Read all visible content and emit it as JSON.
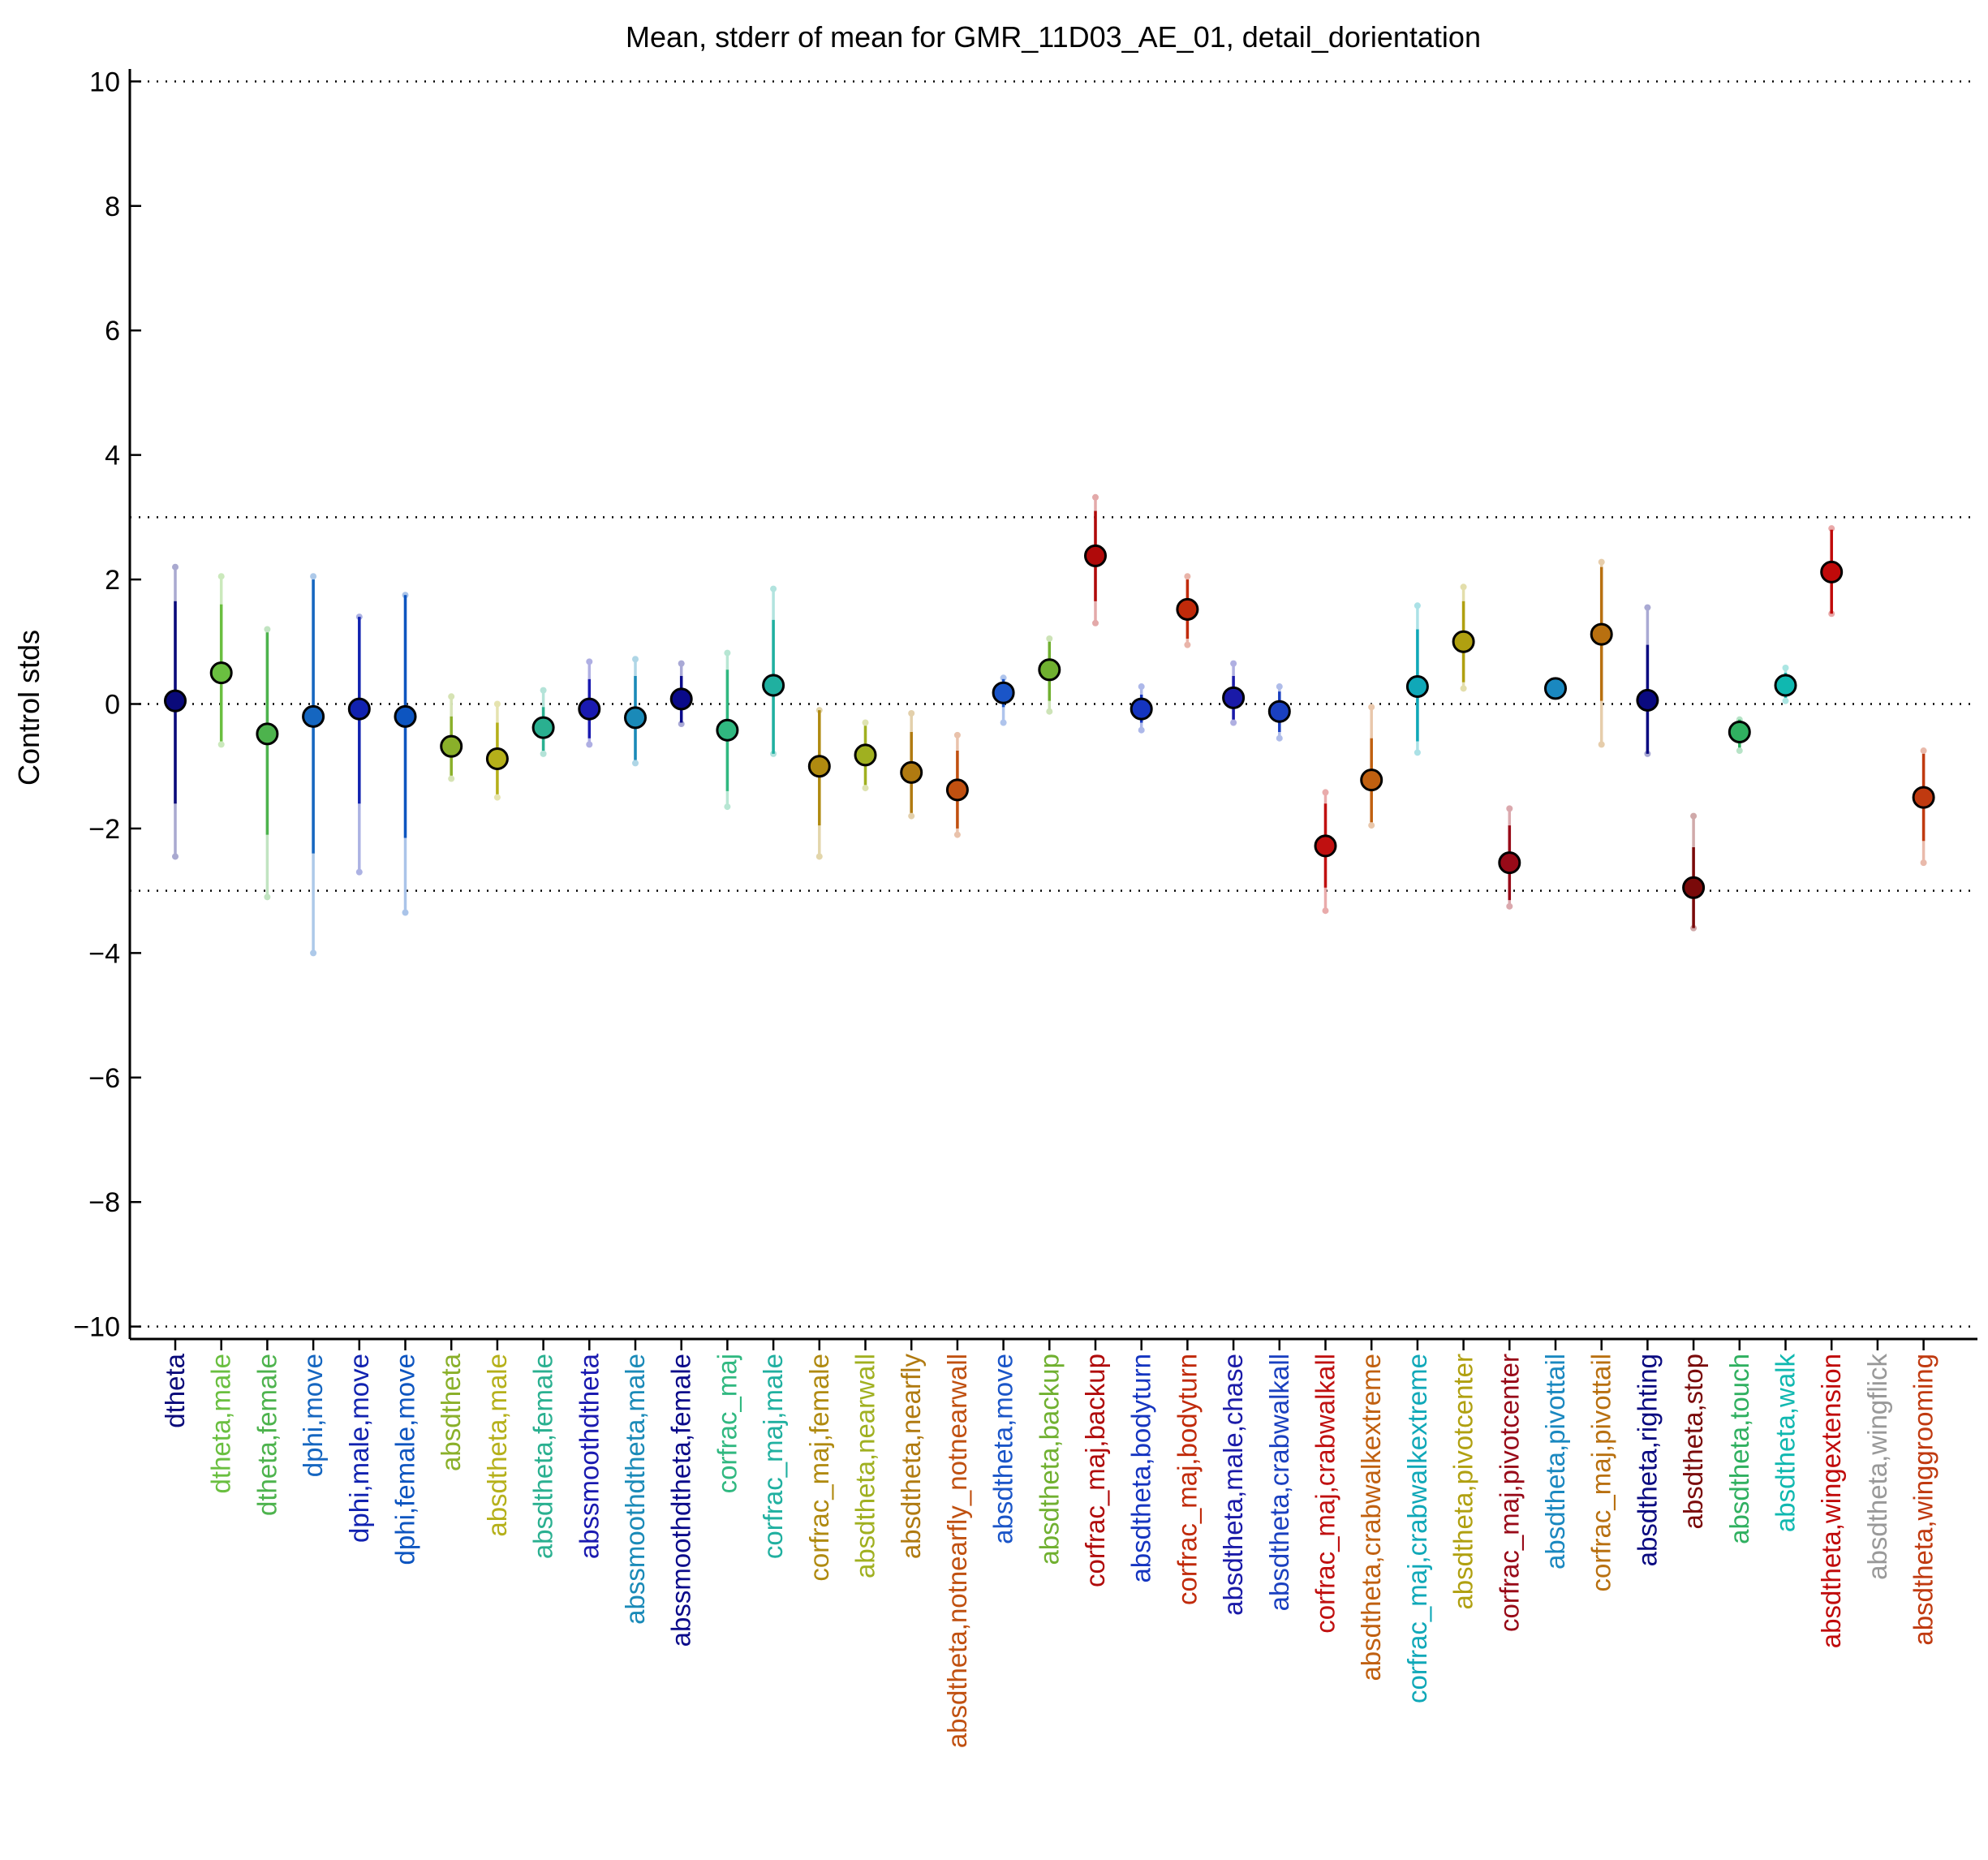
{
  "chart_data": {
    "type": "scatter",
    "title": "Mean, stderr of mean for GMR_11D03_AE_01, detail_dorientation",
    "xlabel": "",
    "ylabel": "Control stds",
    "ylim": [
      -10.2,
      10.2
    ],
    "yticks": [
      10,
      8,
      6,
      4,
      2,
      0,
      -2,
      -4,
      -6,
      -8,
      -10
    ],
    "ytick_labels": [
      "10",
      "8",
      "6",
      "4",
      "2",
      "0",
      "−2",
      "−4",
      "−6",
      "−8",
      "−10"
    ],
    "reference_lines": [
      10,
      3,
      0,
      -3,
      -10
    ],
    "grid": false,
    "legend": "none",
    "points": [
      {
        "label": "dtheta",
        "mean": 0.05,
        "sem_low": -1.6,
        "sem_high": 1.65,
        "ext_low": -2.45,
        "ext_high": 2.2,
        "color": "#0a0a7a"
      },
      {
        "label": "dtheta,male",
        "mean": 0.5,
        "sem_low": -0.6,
        "sem_high": 1.6,
        "ext_low": -0.65,
        "ext_high": 2.05,
        "color": "#6abf40"
      },
      {
        "label": "dtheta,female",
        "mean": -0.48,
        "sem_low": -2.1,
        "sem_high": 1.15,
        "ext_low": -3.1,
        "ext_high": 1.2,
        "color": "#4db34d"
      },
      {
        "label": "dphi,move",
        "mean": -0.2,
        "sem_low": -2.4,
        "sem_high": 2.0,
        "ext_low": -4.0,
        "ext_high": 2.05,
        "color": "#1566c0"
      },
      {
        "label": "dphi,male,move",
        "mean": -0.08,
        "sem_low": -1.6,
        "sem_high": 1.4,
        "ext_low": -2.7,
        "ext_high": 1.4,
        "color": "#1122b0"
      },
      {
        "label": "dphi,female,move",
        "mean": -0.2,
        "sem_low": -2.15,
        "sem_high": 1.75,
        "ext_low": -3.35,
        "ext_high": 1.75,
        "color": "#0d55c0"
      },
      {
        "label": "absdtheta",
        "mean": -0.68,
        "sem_low": -1.15,
        "sem_high": -0.2,
        "ext_low": -1.2,
        "ext_high": 0.12,
        "color": "#8ab02a"
      },
      {
        "label": "absdtheta,male",
        "mean": -0.88,
        "sem_low": -1.45,
        "sem_high": -0.3,
        "ext_low": -1.5,
        "ext_high": 0.0,
        "color": "#b5b01a"
      },
      {
        "label": "absdtheta,female",
        "mean": -0.38,
        "sem_low": -0.75,
        "sem_high": -0.05,
        "ext_low": -0.8,
        "ext_high": 0.22,
        "color": "#2ab090"
      },
      {
        "label": "abssmoothdtheta",
        "mean": -0.08,
        "sem_low": -0.55,
        "sem_high": 0.4,
        "ext_low": -0.65,
        "ext_high": 0.68,
        "color": "#1a1ab0"
      },
      {
        "label": "abssmoothdtheta,male",
        "mean": -0.22,
        "sem_low": -0.9,
        "sem_high": 0.45,
        "ext_low": -0.95,
        "ext_high": 0.72,
        "color": "#1a8ab8"
      },
      {
        "label": "abssmoothdtheta,female",
        "mean": 0.08,
        "sem_low": -0.3,
        "sem_high": 0.45,
        "ext_low": -0.32,
        "ext_high": 0.65,
        "color": "#0a0a8a"
      },
      {
        "label": "corfrac_maj",
        "mean": -0.42,
        "sem_low": -1.4,
        "sem_high": 0.55,
        "ext_low": -1.65,
        "ext_high": 0.82,
        "color": "#30b880"
      },
      {
        "label": "corfrac_maj,male",
        "mean": 0.3,
        "sem_low": -0.8,
        "sem_high": 1.35,
        "ext_low": -0.8,
        "ext_high": 1.85,
        "color": "#20b0a0"
      },
      {
        "label": "corfrac_maj,female",
        "mean": -1.0,
        "sem_low": -1.95,
        "sem_high": -0.1,
        "ext_low": -2.45,
        "ext_high": -0.1,
        "color": "#b08a10"
      },
      {
        "label": "absdtheta,nearwall",
        "mean": -0.82,
        "sem_low": -1.3,
        "sem_high": -0.35,
        "ext_low": -1.35,
        "ext_high": -0.3,
        "color": "#a0b020"
      },
      {
        "label": "absdtheta,nearfly",
        "mean": -1.1,
        "sem_low": -1.75,
        "sem_high": -0.45,
        "ext_low": -1.8,
        "ext_high": -0.15,
        "color": "#b07a10"
      },
      {
        "label": "absdtheta,notnearfly_notnearwall",
        "mean": -1.38,
        "sem_low": -2.0,
        "sem_high": -0.75,
        "ext_low": -2.1,
        "ext_high": -0.5,
        "color": "#c05010"
      },
      {
        "label": "absdtheta,move",
        "mean": 0.18,
        "sem_low": -0.05,
        "sem_high": 0.4,
        "ext_low": -0.3,
        "ext_high": 0.42,
        "color": "#1a55c8"
      },
      {
        "label": "absdtheta,backup",
        "mean": 0.55,
        "sem_low": 0.05,
        "sem_high": 1.0,
        "ext_low": -0.12,
        "ext_high": 1.05,
        "color": "#70b030"
      },
      {
        "label": "corfrac_maj,backup",
        "mean": 2.38,
        "sem_low": 1.65,
        "sem_high": 3.1,
        "ext_low": 1.3,
        "ext_high": 3.32,
        "color": "#b00a0a"
      },
      {
        "label": "absdtheta,bodyturn",
        "mean": -0.08,
        "sem_low": -0.3,
        "sem_high": 0.15,
        "ext_low": -0.42,
        "ext_high": 0.28,
        "color": "#1535c0"
      },
      {
        "label": "corfrac_maj,bodyturn",
        "mean": 1.52,
        "sem_low": 1.05,
        "sem_high": 2.0,
        "ext_low": 0.95,
        "ext_high": 2.05,
        "color": "#c02a0a"
      },
      {
        "label": "absdtheta,male,chase",
        "mean": 0.1,
        "sem_low": -0.25,
        "sem_high": 0.45,
        "ext_low": -0.3,
        "ext_high": 0.65,
        "color": "#1a1aa8"
      },
      {
        "label": "absdtheta,crabwalkall",
        "mean": -0.12,
        "sem_low": -0.45,
        "sem_high": 0.2,
        "ext_low": -0.55,
        "ext_high": 0.28,
        "color": "#1a40c0"
      },
      {
        "label": "corfrac_maj,crabwalkall",
        "mean": -2.28,
        "sem_low": -2.95,
        "sem_high": -1.6,
        "ext_low": -3.32,
        "ext_high": -1.42,
        "color": "#c01010"
      },
      {
        "label": "absdtheta,crabwalkextreme",
        "mean": -1.22,
        "sem_low": -1.9,
        "sem_high": -0.55,
        "ext_low": -1.95,
        "ext_high": -0.05,
        "color": "#c06010"
      },
      {
        "label": "corfrac_maj,crabwalkextreme",
        "mean": 0.28,
        "sem_low": -0.6,
        "sem_high": 1.2,
        "ext_low": -0.78,
        "ext_high": 1.58,
        "color": "#10a8b8"
      },
      {
        "label": "absdtheta,pivotcenter",
        "mean": 1.0,
        "sem_low": 0.35,
        "sem_high": 1.65,
        "ext_low": 0.25,
        "ext_high": 1.88,
        "color": "#b0a010"
      },
      {
        "label": "corfrac_maj,pivotcenter",
        "mean": -2.55,
        "sem_low": -3.15,
        "sem_high": -1.95,
        "ext_low": -3.25,
        "ext_high": -1.68,
        "color": "#980a18"
      },
      {
        "label": "absdtheta,pivottail",
        "mean": 0.25,
        "sem_low": 0.2,
        "sem_high": 0.3,
        "ext_low": 0.18,
        "ext_high": 0.32,
        "color": "#1a88c0"
      },
      {
        "label": "corfrac_maj,pivottail",
        "mean": 1.12,
        "sem_low": 0.05,
        "sem_high": 2.2,
        "ext_low": -0.65,
        "ext_high": 2.28,
        "color": "#b87010"
      },
      {
        "label": "absdtheta,righting",
        "mean": 0.06,
        "sem_low": -0.8,
        "sem_high": 0.95,
        "ext_low": -0.8,
        "ext_high": 1.55,
        "color": "#0a0a80"
      },
      {
        "label": "absdtheta,stop",
        "mean": -2.95,
        "sem_low": -3.6,
        "sem_high": -2.3,
        "ext_low": -3.6,
        "ext_high": -1.8,
        "color": "#7a0a0a"
      },
      {
        "label": "absdtheta,touch",
        "mean": -0.45,
        "sem_low": -0.7,
        "sem_high": -0.25,
        "ext_low": -0.75,
        "ext_high": -0.25,
        "color": "#30b060"
      },
      {
        "label": "absdtheta,walk",
        "mean": 0.3,
        "sem_low": 0.1,
        "sem_high": 0.5,
        "ext_low": 0.05,
        "ext_high": 0.58,
        "color": "#10b8b0"
      },
      {
        "label": "absdtheta,wingextension",
        "mean": 2.12,
        "sem_low": 1.45,
        "sem_high": 2.8,
        "ext_low": 1.45,
        "ext_high": 2.82,
        "color": "#c00a0a"
      },
      {
        "label": "absdtheta,wingflick",
        "mean": null,
        "sem_low": null,
        "sem_high": null,
        "ext_low": null,
        "ext_high": null,
        "color": "#999999"
      },
      {
        "label": "absdtheta,winggrooming",
        "mean": -1.5,
        "sem_low": -2.2,
        "sem_high": -0.8,
        "ext_low": -2.55,
        "ext_high": -0.75,
        "color": "#c03a10"
      }
    ]
  }
}
